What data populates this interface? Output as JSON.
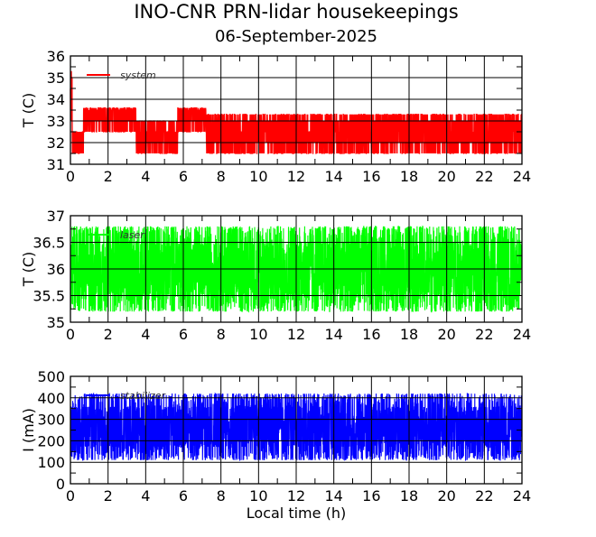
{
  "chart_data": [
    {
      "type": "line",
      "title": "INO-CNR PRN-lidar housekeepings",
      "subtitle": "06-September-2025",
      "xlabel": "",
      "ylabel": "T (C)",
      "xlim": [
        0,
        24
      ],
      "ylim": [
        31,
        36
      ],
      "xticks": [
        "0",
        "2",
        "4",
        "6",
        "8",
        "10",
        "12",
        "14",
        "16",
        "18",
        "20",
        "22",
        "24"
      ],
      "yticks": [
        "31",
        "32",
        "33",
        "34",
        "35",
        "36"
      ],
      "grid": true,
      "legend": "top-left",
      "series": [
        {
          "name": "system",
          "color": "#ff0000",
          "bands": [
            {
              "from": 0,
              "to": 0.1,
              "low": 32.5,
              "high": 35.3
            },
            {
              "from": 0.1,
              "to": 0.7,
              "low": 31.5,
              "high": 32.5
            },
            {
              "from": 0.7,
              "to": 3.5,
              "low": 32.5,
              "high": 33.6
            },
            {
              "from": 3.5,
              "to": 5.7,
              "low": 31.5,
              "high": 33.0
            },
            {
              "from": 5.7,
              "to": 7.2,
              "low": 32.5,
              "high": 33.6
            },
            {
              "from": 7.2,
              "to": 24,
              "low": 31.5,
              "high": 33.3
            }
          ]
        }
      ]
    },
    {
      "type": "line",
      "xlabel": "",
      "ylabel": "T (C)",
      "xlim": [
        0,
        24
      ],
      "ylim": [
        35,
        37
      ],
      "xticks": [
        "0",
        "2",
        "4",
        "6",
        "8",
        "10",
        "12",
        "14",
        "16",
        "18",
        "20",
        "22",
        "24"
      ],
      "yticks": [
        "35",
        "35.5",
        "36",
        "36.5",
        "37"
      ],
      "grid": true,
      "legend": "top-left",
      "series": [
        {
          "name": "laser",
          "color": "#00ff00",
          "bands": [
            {
              "from": 0,
              "to": 24,
              "low": 35.2,
              "high": 36.8
            }
          ]
        }
      ]
    },
    {
      "type": "line",
      "xlabel": "Local time (h)",
      "ylabel": "I (mA)",
      "xlim": [
        0,
        24
      ],
      "ylim": [
        0,
        500
      ],
      "xticks": [
        "0",
        "2",
        "4",
        "6",
        "8",
        "10",
        "12",
        "14",
        "16",
        "18",
        "20",
        "22",
        "24"
      ],
      "yticks": [
        "0",
        "100",
        "200",
        "300",
        "400",
        "500"
      ],
      "grid": true,
      "legend": "top-left",
      "series": [
        {
          "name": "stabilizer",
          "color": "#0000ff",
          "bands": [
            {
              "from": 0,
              "to": 24,
              "low": 110,
              "high": 420
            }
          ]
        }
      ]
    }
  ]
}
